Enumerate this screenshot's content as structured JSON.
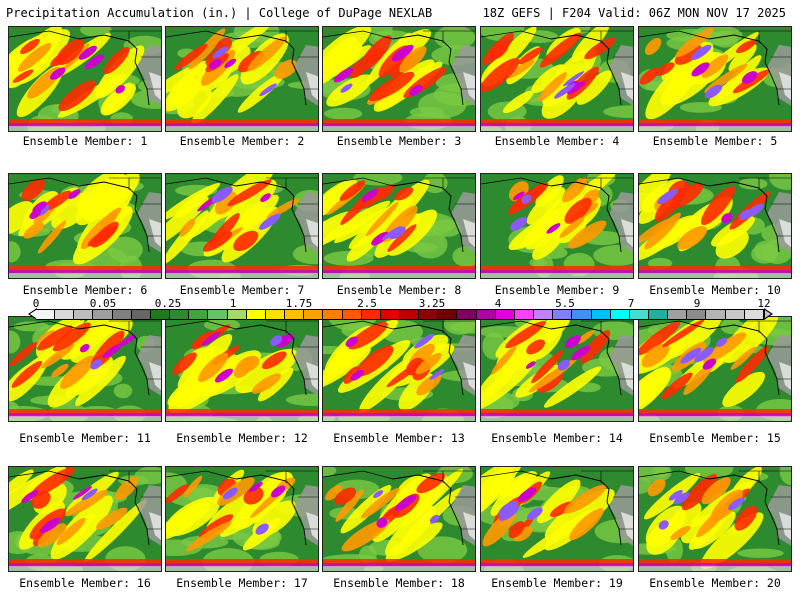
{
  "header": {
    "left": "Precipitation Accumulation (in.) | College of DuPage NEXLAB",
    "right": "18Z GEFS | F204 Valid: 06Z MON NOV 17 2025"
  },
  "panels": [
    {
      "label": "Ensemble Member: 1"
    },
    {
      "label": "Ensemble Member: 2"
    },
    {
      "label": "Ensemble Member: 3"
    },
    {
      "label": "Ensemble Member: 4"
    },
    {
      "label": "Ensemble Member: 5"
    },
    {
      "label": "Ensemble Member: 6"
    },
    {
      "label": "Ensemble Member: 7"
    },
    {
      "label": "Ensemble Member: 8"
    },
    {
      "label": "Ensemble Member: 9"
    },
    {
      "label": "Ensemble Member: 10"
    },
    {
      "label": "Ensemble Member: 11"
    },
    {
      "label": "Ensemble Member: 12"
    },
    {
      "label": "Ensemble Member: 13"
    },
    {
      "label": "Ensemble Member: 14"
    },
    {
      "label": "Ensemble Member: 15"
    },
    {
      "label": "Ensemble Member: 16"
    },
    {
      "label": "Ensemble Member: 17"
    },
    {
      "label": "Ensemble Member: 18"
    },
    {
      "label": "Ensemble Member: 19"
    },
    {
      "label": "Ensemble Member: 20"
    }
  ],
  "colorbar": {
    "ticks": [
      "0",
      "0.05",
      "0.25",
      "1",
      "1.75",
      "2.5",
      "3.25",
      "4",
      "5.5",
      "7",
      "9",
      "12"
    ],
    "colors": [
      "#f4f4f4",
      "#d8d8d8",
      "#bdbdbd",
      "#9e9e9e",
      "#7f7f7f",
      "#666666",
      "#1f7a1f",
      "#2e8a2e",
      "#3fa63f",
      "#66c266",
      "#a6d96a",
      "#ffff00",
      "#ffe000",
      "#ffc000",
      "#ffa000",
      "#ff8000",
      "#ff5a00",
      "#ff2a00",
      "#e00000",
      "#b80000",
      "#900000",
      "#700000",
      "#800060",
      "#b000a0",
      "#e000e0",
      "#ff40ff",
      "#c080ff",
      "#8080ff",
      "#4090ff",
      "#00c0ff",
      "#00ffff",
      "#40e0d0",
      "#20b0a0",
      "#a0a0a0",
      "#8c8c8c",
      "#b4b4b4",
      "#c8c8c8",
      "#dcdcdc"
    ]
  },
  "map_colors": {
    "green": "#2e8a2e",
    "light_green": "#7ac943",
    "yellow": "#ffff00",
    "orange": "#ff9900",
    "red": "#ff2a00",
    "magenta": "#cc00cc",
    "purple": "#8a5cff",
    "gray": "#9a9a9a",
    "white": "#e8e8e8"
  }
}
